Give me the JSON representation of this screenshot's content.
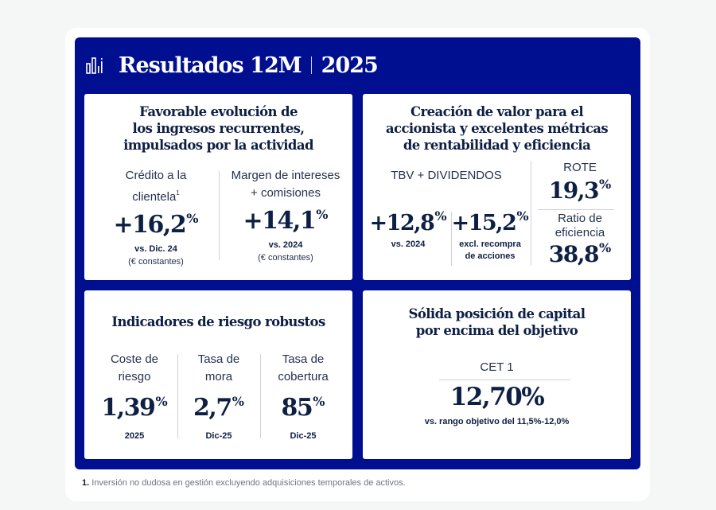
{
  "header": {
    "icon": "bar-chart-icon",
    "title": "Resultados 12M",
    "year": "2025"
  },
  "cards": {
    "ingresos": {
      "title_lines": [
        "Favorable evolución de",
        "los ingresos recurrentes,",
        "impulsados por la actividad"
      ],
      "metrics": [
        {
          "label_lines": [
            "Crédito a la",
            "clientela"
          ],
          "footnote_ref": "1",
          "value": "+16,2",
          "unit": "%",
          "note": "vs. Dic. 24",
          "note2": "(€ constantes)"
        },
        {
          "label_lines": [
            "Margen de intereses",
            "+ comisiones"
          ],
          "value": "+14,1",
          "unit": "%",
          "note": "vs. 2024",
          "note2": "(€ constantes)"
        }
      ]
    },
    "valor": {
      "title_lines": [
        "Creación de valor para el",
        "accionista y excelentes métricas",
        "de rentabilidad y eficiencia"
      ],
      "tbv_label": "TBV + DIVIDENDOS",
      "tbv_metrics": [
        {
          "value": "+12,8",
          "unit": "%",
          "note_lines": [
            "vs. 2024"
          ]
        },
        {
          "value": "+15,2",
          "unit": "%",
          "note_lines": [
            "excl. recompra",
            "de acciones"
          ]
        }
      ],
      "rote": {
        "label": "ROTE",
        "value": "19,3",
        "unit": "%"
      },
      "eficiencia": {
        "label_lines": [
          "Ratio de",
          "eficiencia"
        ],
        "value": "38,8",
        "unit": "%"
      }
    },
    "riesgo": {
      "title": "Indicadores de riesgo robustos",
      "metrics": [
        {
          "label_lines": [
            "Coste de",
            "riesgo"
          ],
          "value": "1,39",
          "unit": "%",
          "note": "2025"
        },
        {
          "label_lines": [
            "Tasa de",
            "mora"
          ],
          "value": "2,7",
          "unit": "%",
          "note": "Dic-25"
        },
        {
          "label_lines": [
            "Tasa de",
            "cobertura"
          ],
          "value": "85",
          "unit": "%",
          "note": "Dic-25"
        }
      ]
    },
    "capital": {
      "title_lines": [
        "Sólida posición de capital",
        "por encima del objetivo"
      ],
      "label": "CET 1",
      "value": "12,70%",
      "note": "vs. rango objetivo del 11,5%-12,0%"
    }
  },
  "footnote": {
    "number": "1.",
    "text": "Inversión no dudosa en gestión excluyendo adquisiciones temporales de activos."
  },
  "colors": {
    "brand_blue": "#000f8f",
    "navy_text": "#0e1f44",
    "background": "#f5f6f6"
  }
}
